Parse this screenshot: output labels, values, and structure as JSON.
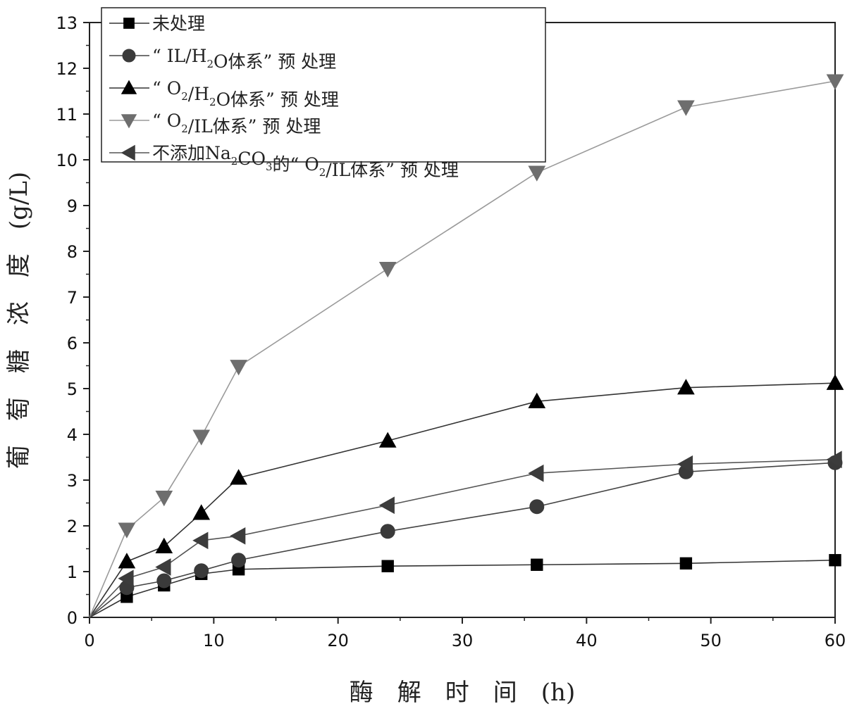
{
  "chart_data": {
    "type": "line",
    "xlabel": "酶　解　时　间　(h)",
    "ylabel": "葡　萄　糖　浓　度　(g/L)",
    "xlim": [
      0,
      60
    ],
    "ylim": [
      0,
      13
    ],
    "x_ticks": [
      "0",
      "10",
      "20",
      "30",
      "40",
      "50",
      "60"
    ],
    "y_ticks": [
      "0",
      "1",
      "2",
      "3",
      "4",
      "5",
      "6",
      "7",
      "8",
      "9",
      "10",
      "11",
      "12",
      "13"
    ],
    "legend_position": "top-left",
    "grid": false,
    "x": [
      0,
      3,
      6,
      9,
      12,
      24,
      36,
      48,
      60
    ],
    "series": [
      {
        "name": "未处理",
        "legend_parts": [
          {
            "t": "未处理"
          }
        ],
        "marker": "square",
        "color": "#000000",
        "line_color": "#333333",
        "values": [
          0,
          0.45,
          0.7,
          0.95,
          1.05,
          1.12,
          1.15,
          1.18,
          1.25
        ]
      },
      {
        "name": "“ IL/H2O体系” 预 处理",
        "legend_parts": [
          {
            "t": "“ IL/H"
          },
          {
            "t": "2",
            "sub": true
          },
          {
            "t": "O体系” 预 处理"
          }
        ],
        "marker": "circle",
        "color": "#3a3a3a",
        "line_color": "#444444",
        "values": [
          0,
          0.65,
          0.8,
          1.02,
          1.25,
          1.88,
          2.42,
          3.18,
          3.38
        ]
      },
      {
        "name": "“ O2/H2O体系” 预 处理",
        "legend_parts": [
          {
            "t": "“ O"
          },
          {
            "t": "2",
            "sub": true
          },
          {
            "t": "/H"
          },
          {
            "t": "2",
            "sub": true
          },
          {
            "t": "O体系” 预 处理"
          }
        ],
        "marker": "triangle-up",
        "color": "#000000",
        "line_color": "#333333",
        "values": [
          0,
          1.22,
          1.55,
          2.28,
          3.05,
          3.86,
          4.72,
          5.02,
          5.12
        ]
      },
      {
        "name": "“ O2/IL体系” 预 处理",
        "legend_parts": [
          {
            "t": "“ O"
          },
          {
            "t": "2",
            "sub": true
          },
          {
            "t": "/IL体系” 预 处理"
          }
        ],
        "marker": "triangle-down",
        "color": "#6e6e6e",
        "line_color": "#9a9a9a",
        "values": [
          0,
          1.92,
          2.62,
          3.95,
          5.48,
          7.62,
          9.72,
          11.15,
          11.72
        ]
      },
      {
        "name": "不添加Na2CO3的“ O2/IL体系” 预 处理",
        "legend_parts": [
          {
            "t": "不添加Na"
          },
          {
            "t": "2",
            "sub": true
          },
          {
            "t": "CO"
          },
          {
            "t": "3",
            "sub": true
          },
          {
            "t": "的“ O"
          },
          {
            "t": "2",
            "sub": true
          },
          {
            "t": "/IL体系” 预 处理"
          }
        ],
        "marker": "triangle-left",
        "color": "#3c3c3c",
        "line_color": "#555555",
        "values": [
          0,
          0.85,
          1.1,
          1.68,
          1.78,
          2.45,
          3.15,
          3.35,
          3.45
        ]
      }
    ]
  }
}
